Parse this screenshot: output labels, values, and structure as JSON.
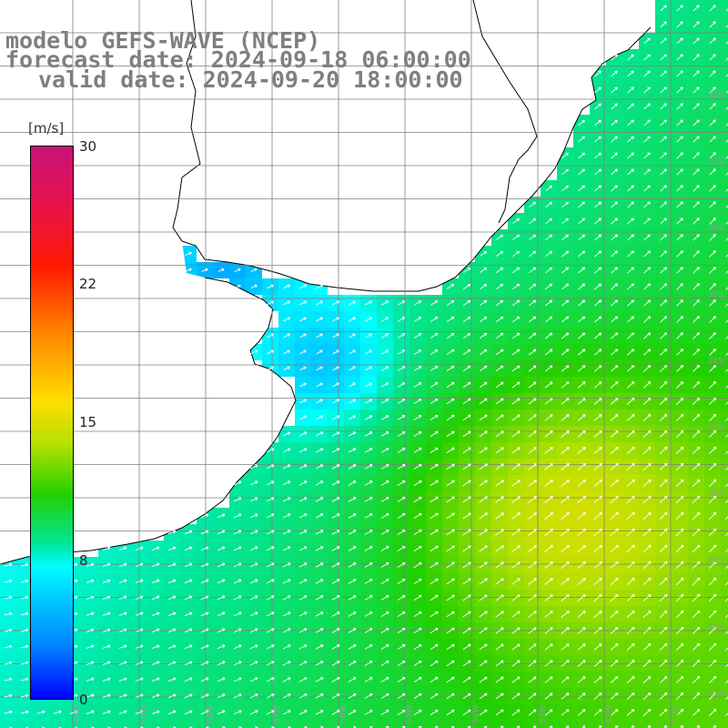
{
  "title": {
    "line1": "modelo GEFS-WAVE (NCEP)",
    "line2": "forecast date: 2024-09-18 06:00:00",
    "line3": "valid date: 2024-09-20 18:00:00"
  },
  "colorbar": {
    "unit": "[m/s]",
    "ticks": [
      "30",
      "22",
      "15",
      "8",
      "0"
    ],
    "range": [
      0,
      30
    ],
    "stops": [
      "#0000ff",
      "#0088ff",
      "#00c8ff",
      "#00ffff",
      "#00e69b",
      "#22d000",
      "#b4e000",
      "#ffdd00",
      "#ff7f00",
      "#ff1a00",
      "#e6124c",
      "#c8137a"
    ]
  },
  "map": {
    "variable": "wind speed and direction",
    "region": "Uruguay coast / Rio de la Plata, South Atlantic",
    "lat_labels": [
      "32S",
      "33S",
      "34S",
      "35S",
      "36S",
      "37S",
      "38S",
      "39S",
      "40S",
      "41S"
    ],
    "lon_labels": [
      "60W",
      "59W",
      "58W",
      "57W",
      "56W",
      "55W",
      "54W",
      "53W",
      "52W",
      "51W"
    ],
    "land_color": "#ffffff",
    "coastline_color": "#000000",
    "grid_color": "#7f7f7f",
    "arrow_color": "#ffffff",
    "dominant_wind_direction": "from the southwest, blowing northeast"
  }
}
